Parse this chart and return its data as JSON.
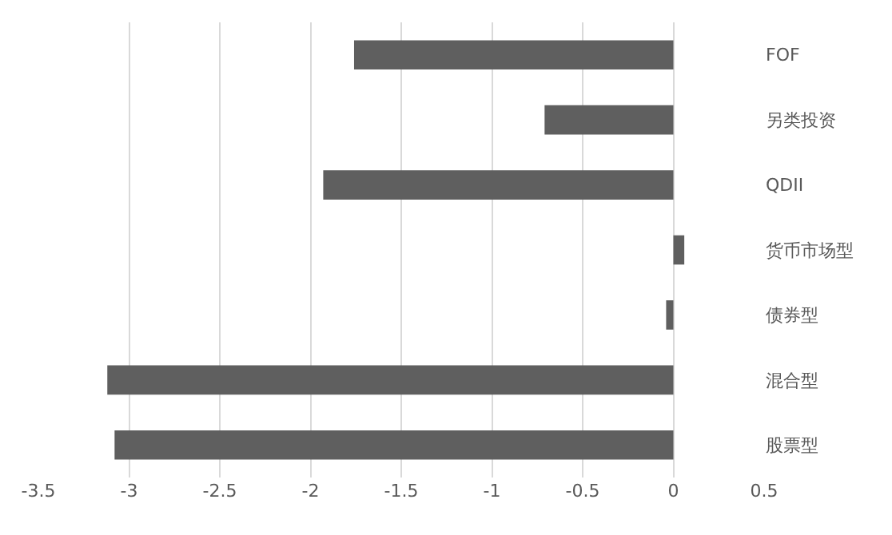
{
  "chart_data": {
    "type": "bar",
    "orientation": "horizontal",
    "categories": [
      "FOF",
      "另类投资",
      "QDII",
      "货币市场型",
      "债券型",
      "混合型",
      "股票型"
    ],
    "values": [
      -1.76,
      -0.71,
      -1.93,
      0.06,
      -0.04,
      -3.12,
      -3.08
    ],
    "color": "#5f5f5f",
    "xlim": [
      -3.5,
      0.5
    ],
    "xticks": [
      -3.5,
      -3,
      -2.5,
      -2,
      -1.5,
      -1,
      -0.5,
      0,
      0.5
    ],
    "grid": "x"
  }
}
